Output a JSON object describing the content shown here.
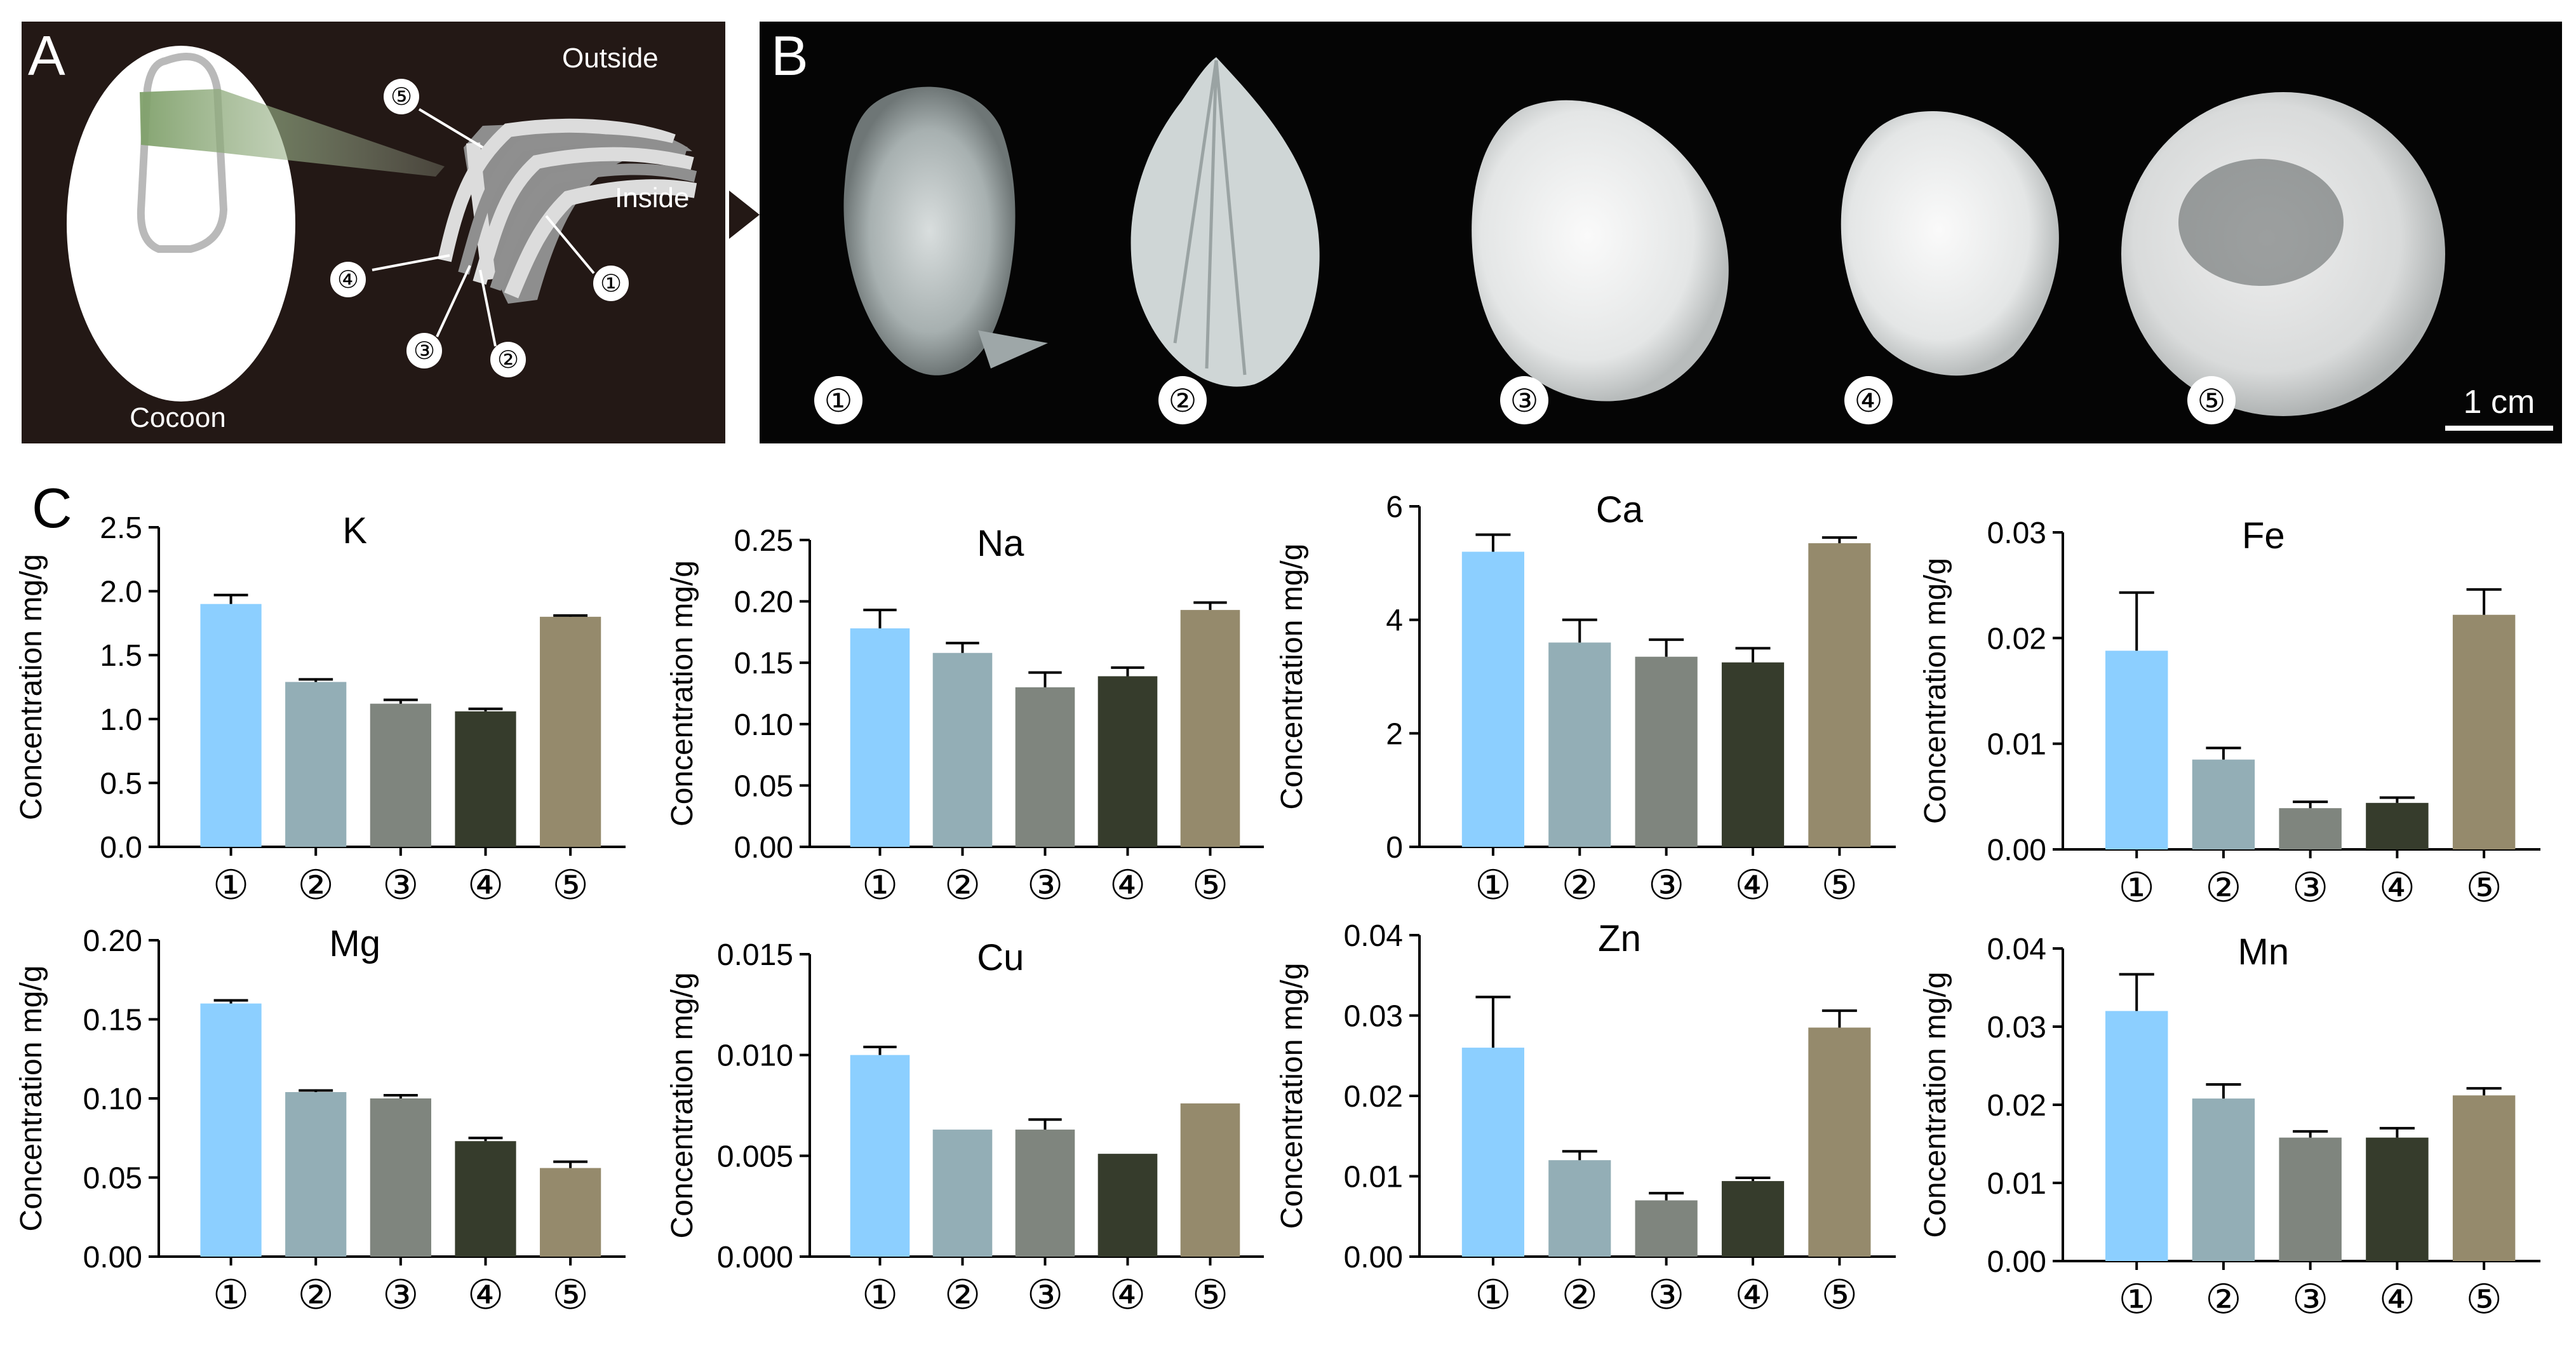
{
  "panels": {
    "a": {
      "letter": "A",
      "outside_label": "Outside",
      "inside_label": "Inside",
      "cocoon_label": "Cocoon",
      "layers": [
        "①",
        "②",
        "③",
        "④",
        "⑤"
      ]
    },
    "b": {
      "letter": "B",
      "samples": [
        "①",
        "②",
        "③",
        "④",
        "⑤"
      ],
      "scale_bar": "1 cm"
    },
    "c": {
      "letter": "C"
    }
  },
  "colors": {
    "layer_1": "#8ccfff",
    "layer_2": "#93aeb6",
    "layer_3": "#7f857e",
    "layer_4": "#363c2c",
    "layer_5": "#958a6c",
    "panel_a_bg": "#231815",
    "panel_b_bg": "#050505"
  },
  "chart_data": [
    {
      "type": "bar",
      "title": "K",
      "ylabel": "Concentration mg/g",
      "categories": [
        "①",
        "②",
        "③",
        "④",
        "⑤"
      ],
      "values": [
        1.9,
        1.29,
        1.12,
        1.06,
        1.8
      ],
      "errors": [
        0.07,
        0.02,
        0.03,
        0.02,
        0.01
      ],
      "ylim": [
        0,
        2.5
      ],
      "yticks": [
        "0.0",
        "0.5",
        "1.0",
        "1.5",
        "2.0",
        "2.5"
      ]
    },
    {
      "type": "bar",
      "title": "Na",
      "ylabel": "Concentration mg/g",
      "categories": [
        "①",
        "②",
        "③",
        "④",
        "⑤"
      ],
      "values": [
        0.178,
        0.158,
        0.13,
        0.139,
        0.193
      ],
      "errors": [
        0.015,
        0.008,
        0.012,
        0.007,
        0.006
      ],
      "ylim": [
        0,
        0.25
      ],
      "yticks": [
        "0.00",
        "0.05",
        "0.10",
        "0.15",
        "0.20",
        "0.25"
      ]
    },
    {
      "type": "bar",
      "title": "Ca",
      "ylabel": "Concentration mg/g",
      "categories": [
        "①",
        "②",
        "③",
        "④",
        "⑤"
      ],
      "values": [
        5.2,
        3.6,
        3.35,
        3.25,
        5.35
      ],
      "errors": [
        0.3,
        0.4,
        0.3,
        0.25,
        0.1
      ],
      "ylim": [
        0,
        6
      ],
      "yticks": [
        "0",
        "2",
        "4",
        "6"
      ]
    },
    {
      "type": "bar",
      "title": "Fe",
      "ylabel": "Concentration mg/g",
      "categories": [
        "①",
        "②",
        "③",
        "④",
        "⑤"
      ],
      "values": [
        0.0188,
        0.0085,
        0.0039,
        0.0044,
        0.0222
      ],
      "errors": [
        0.0055,
        0.0011,
        0.0006,
        0.0005,
        0.0024
      ],
      "ylim": [
        0,
        0.03
      ],
      "yticks": [
        "0.00",
        "0.01",
        "0.02",
        "0.03"
      ]
    },
    {
      "type": "bar",
      "title": "Mg",
      "ylabel": "Concentration mg/g",
      "categories": [
        "①",
        "②",
        "③",
        "④",
        "⑤"
      ],
      "values": [
        0.16,
        0.104,
        0.1,
        0.073,
        0.056
      ],
      "errors": [
        0.002,
        0.001,
        0.002,
        0.002,
        0.004
      ],
      "ylim": [
        0,
        0.2
      ],
      "yticks": [
        "0.00",
        "0.05",
        "0.10",
        "0.15",
        "0.20"
      ]
    },
    {
      "type": "bar",
      "title": "Cu",
      "ylabel": "Concentration mg/g",
      "categories": [
        "①",
        "②",
        "③",
        "④",
        "⑤"
      ],
      "values": [
        0.01,
        0.0063,
        0.0063,
        0.0051,
        0.0076
      ],
      "errors": [
        0.0004,
        0,
        0.0005,
        0,
        0
      ],
      "ylim": [
        0,
        0.015
      ],
      "yticks": [
        "0.000",
        "0.005",
        "0.010",
        "0.015"
      ]
    },
    {
      "type": "bar",
      "title": "Zn",
      "ylabel": "Concentration mg/g",
      "categories": [
        "①",
        "②",
        "③",
        "④",
        "⑤"
      ],
      "values": [
        0.026,
        0.012,
        0.007,
        0.0094,
        0.0285
      ],
      "errors": [
        0.0063,
        0.0011,
        0.0009,
        0.0004,
        0.0021
      ],
      "ylim": [
        0,
        0.04
      ],
      "yticks": [
        "0.00",
        "0.01",
        "0.02",
        "0.03",
        "0.04"
      ]
    },
    {
      "type": "bar",
      "title": "Mn",
      "ylabel": "Concentration mg/g",
      "categories": [
        "①",
        "②",
        "③",
        "④",
        "⑤"
      ],
      "values": [
        0.032,
        0.0208,
        0.0158,
        0.0158,
        0.0212
      ],
      "errors": [
        0.0047,
        0.0018,
        0.0008,
        0.0012,
        0.0009
      ],
      "ylim": [
        0,
        0.04
      ],
      "yticks": [
        "0.00",
        "0.01",
        "0.02",
        "0.03",
        "0.04"
      ]
    }
  ]
}
